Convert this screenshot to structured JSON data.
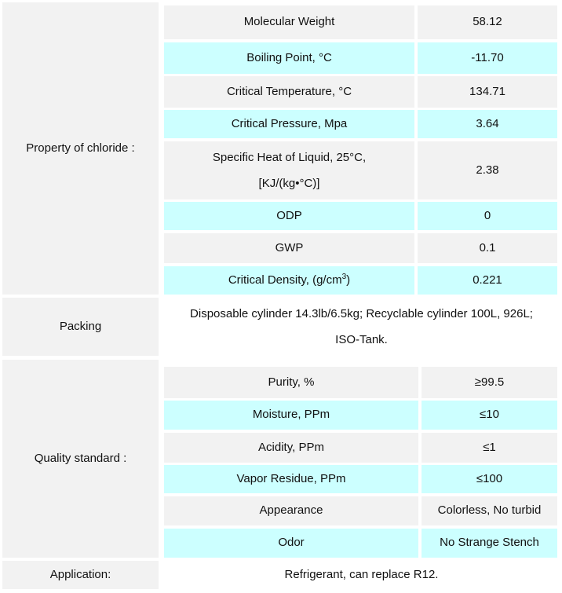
{
  "property": {
    "label": "Property of chloride :",
    "rows": [
      {
        "name": "Molecular Weight",
        "value": "58.12"
      },
      {
        "name": "Boiling Point, °C",
        "value": "-11.70"
      },
      {
        "name": "Critical Temperature, °C",
        "value": "134.71"
      },
      {
        "name": "Critical Pressure, Mpa",
        "value": "3.64"
      },
      {
        "name_line1": "Specific Heat of Liquid, 25°C,",
        "name_line2": "[KJ/(kg•°C)]",
        "value": "2.38"
      },
      {
        "name": "ODP",
        "value": "0"
      },
      {
        "name": "GWP",
        "value": "0.1"
      },
      {
        "name_prefix": "Critical Density, (g/cm",
        "name_sup": "3",
        "name_suffix": ")",
        "value": "0.221"
      }
    ]
  },
  "packing": {
    "label": "Packing",
    "line1": "Disposable cylinder 14.3lb/6.5kg; Recyclable cylinder 100L, 926L;",
    "line2": "ISO-Tank."
  },
  "quality": {
    "label": "Quality standard :",
    "rows": [
      {
        "name": "Purity, %",
        "value": "≥99.5"
      },
      {
        "name": "Moisture, PPm",
        "value": "≤10"
      },
      {
        "name": "Acidity, PPm",
        "value": "≤1"
      },
      {
        "name": "Vapor Residue, PPm",
        "value": "≤100"
      },
      {
        "name": "Appearance",
        "value": "Colorless, No turbid"
      },
      {
        "name": "Odor",
        "value": "No Strange Stench"
      }
    ]
  },
  "application": {
    "label": "Application:",
    "value": "Refrigerant, can replace R12."
  }
}
